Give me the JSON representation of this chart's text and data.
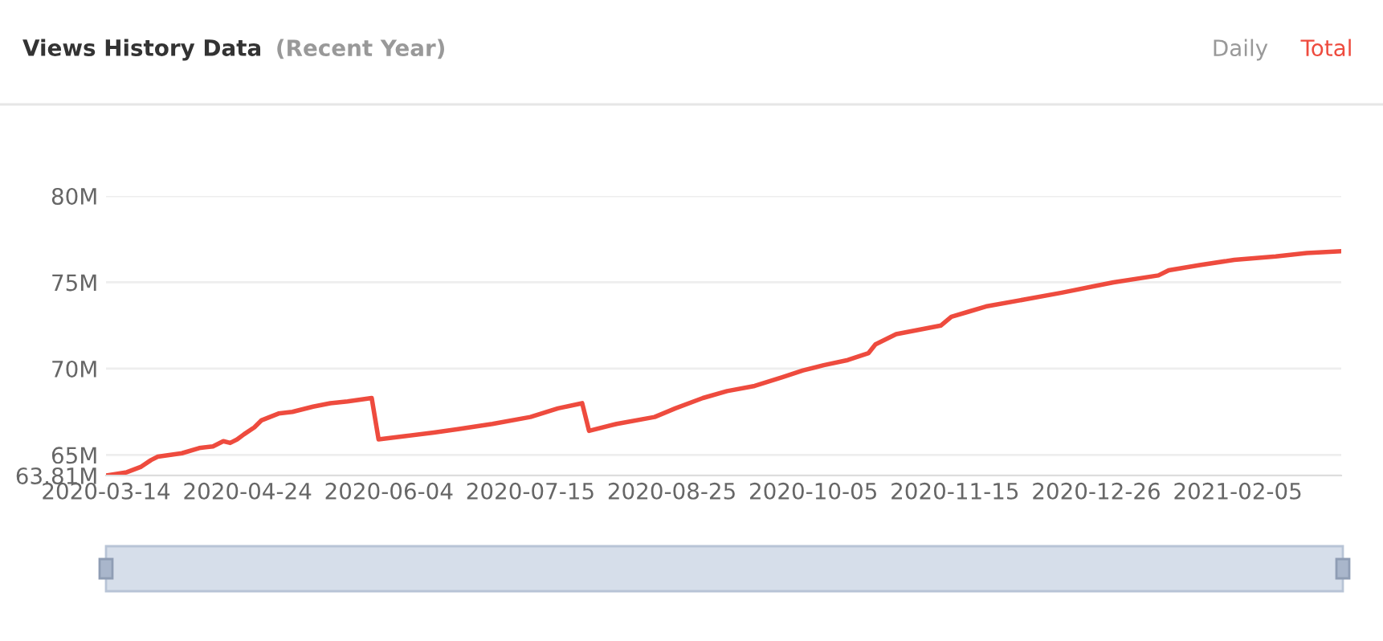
{
  "chart_data": {
    "type": "line",
    "title": "Views History Data",
    "subtitle": "(Recent Year)",
    "annotations": [
      "Daily",
      "Total"
    ],
    "x": [
      "2020-03-14",
      "2020-03-20",
      "2020-03-24",
      "2020-03-27",
      "2020-03-29",
      "2020-04-05",
      "2020-04-10",
      "2020-04-14",
      "2020-04-17",
      "2020-04-19",
      "2020-04-21",
      "2020-04-23",
      "2020-04-26",
      "2020-04-28",
      "2020-05-03",
      "2020-05-07",
      "2020-05-13",
      "2020-05-18",
      "2020-05-23",
      "2020-05-30",
      "2020-06-01",
      "2020-06-09",
      "2020-06-17",
      "2020-06-24",
      "2020-07-04",
      "2020-07-15",
      "2020-07-23",
      "2020-07-30",
      "2020-08-01",
      "2020-08-09",
      "2020-08-20",
      "2020-08-26",
      "2020-09-03",
      "2020-09-10",
      "2020-09-18",
      "2020-09-26",
      "2020-10-02",
      "2020-10-08",
      "2020-10-15",
      "2020-10-21",
      "2020-10-23",
      "2020-10-29",
      "2020-11-11",
      "2020-11-14",
      "2020-11-19",
      "2020-11-24",
      "2020-12-05",
      "2020-12-16",
      "2020-12-26",
      "2020-12-31",
      "2021-01-13",
      "2021-01-16",
      "2021-01-25",
      "2021-02-04",
      "2021-02-16",
      "2021-02-25",
      "2021-03-07"
    ],
    "series": [
      {
        "color": "#ee4b3e",
        "values": [
          63.81,
          64.0,
          64.3,
          64.7,
          64.9,
          65.1,
          65.4,
          65.5,
          65.8,
          65.7,
          65.9,
          66.2,
          66.6,
          67.0,
          67.4,
          67.5,
          67.8,
          68.0,
          68.1,
          68.3,
          65.9,
          66.1,
          66.3,
          66.5,
          66.8,
          67.2,
          67.7,
          68.0,
          66.4,
          66.8,
          67.2,
          67.7,
          68.3,
          68.7,
          69.0,
          69.5,
          69.9,
          70.2,
          70.5,
          70.9,
          71.4,
          72.0,
          72.5,
          73.0,
          73.3,
          73.6,
          74.0,
          74.4,
          74.8,
          75.0,
          75.4,
          75.7,
          76.0,
          76.3,
          76.5,
          76.7,
          76.8
        ]
      }
    ],
    "xlim": [
      "2020-03-14",
      "2021-03-07"
    ],
    "xticks": [
      "2020-03-14",
      "2020-04-24",
      "2020-06-04",
      "2020-07-15",
      "2020-08-25",
      "2020-10-05",
      "2020-11-15",
      "2020-12-26",
      "2021-02-05"
    ],
    "ylim": [
      63.81,
      80
    ],
    "yticks": [
      {
        "value": 63.81,
        "label": "63.81M"
      },
      {
        "value": 65,
        "label": "65M"
      },
      {
        "value": 70,
        "label": "70M"
      },
      {
        "value": 75,
        "label": "75M"
      },
      {
        "value": 80,
        "label": "80M"
      }
    ],
    "grid": "y",
    "marker": "none",
    "line_style": "solid",
    "legend": false
  }
}
